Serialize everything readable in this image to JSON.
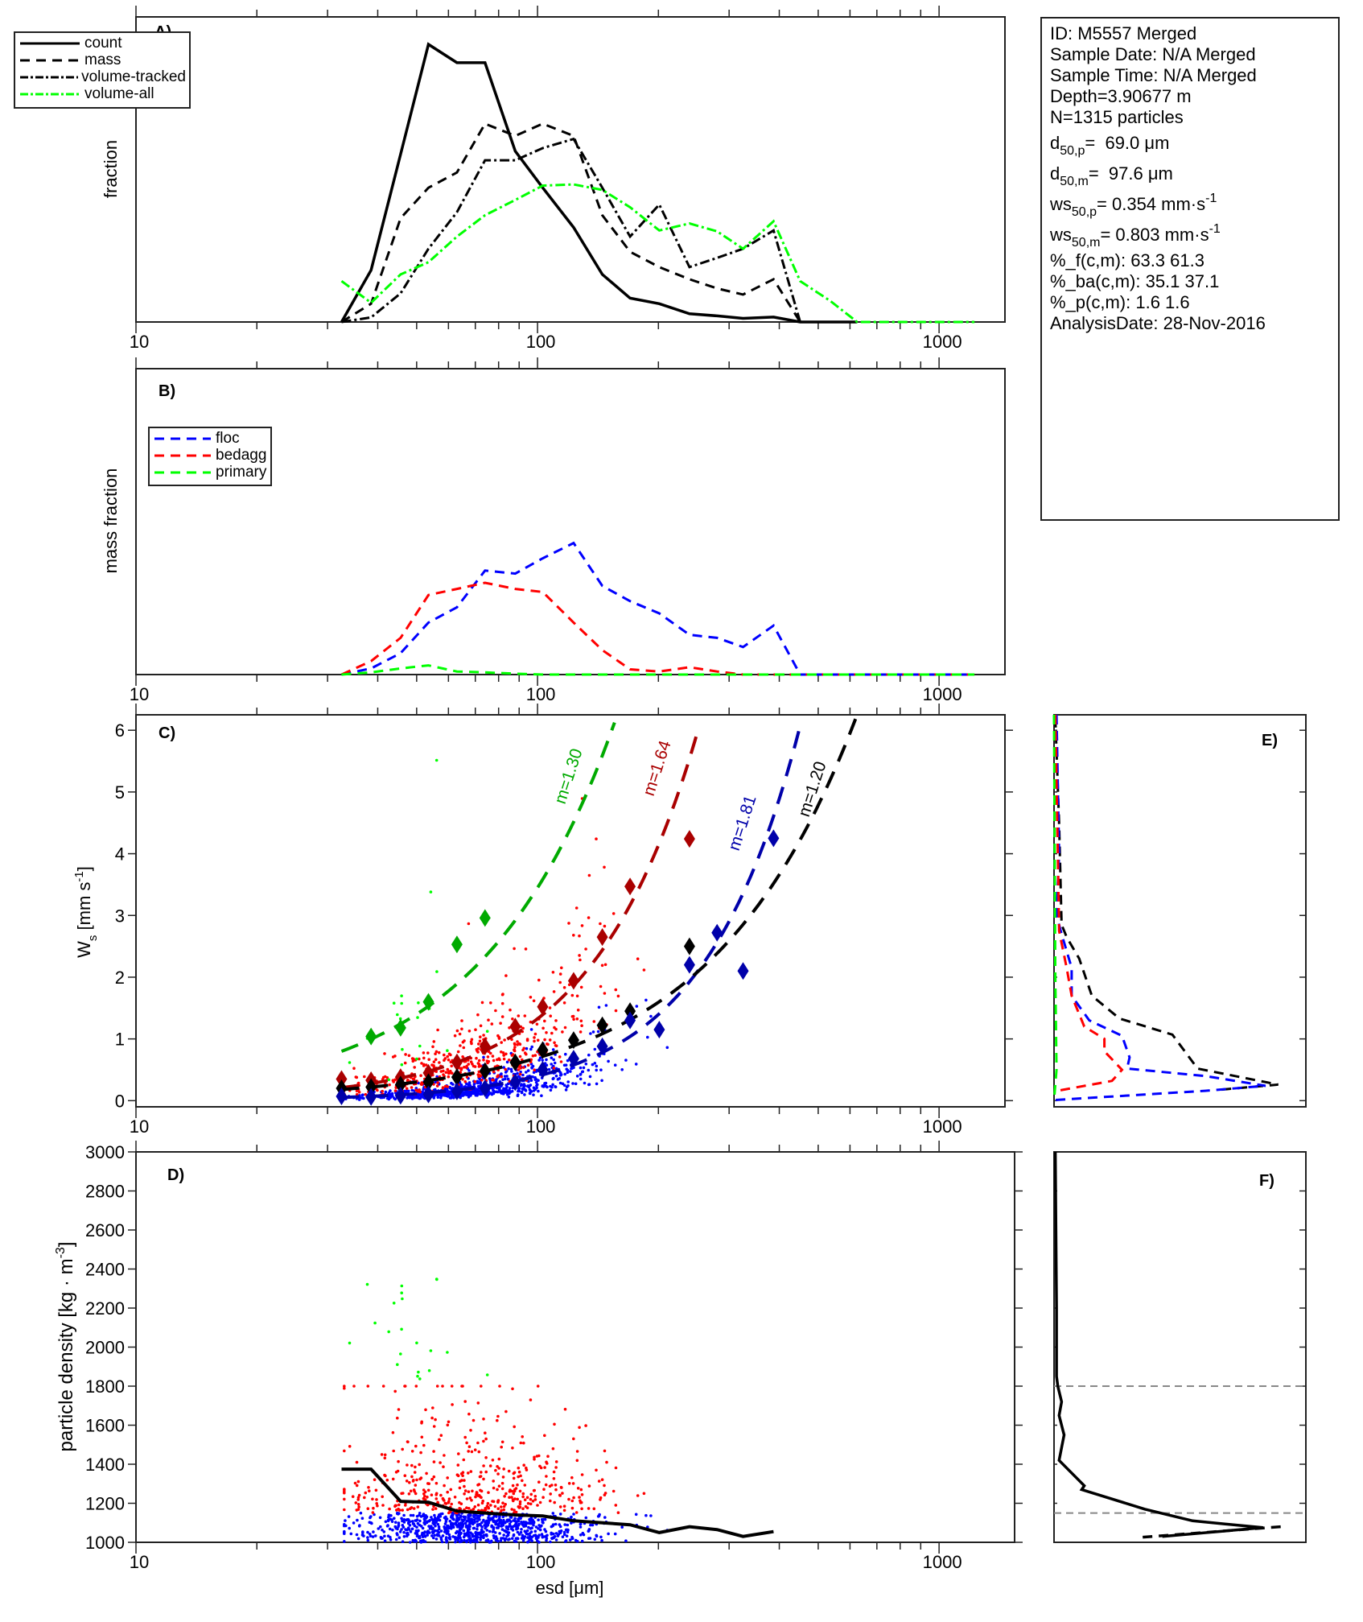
{
  "info_box": {
    "id": "ID: M5557 Merged",
    "sample_date": "Sample Date: N/A Merged",
    "sample_time": "Sample Time: N/A Merged",
    "depth": "Depth=3.90677 m",
    "n": "N=1315 particles",
    "d50p": {
      "main": "d",
      "sub": "50,p",
      "rest": "=  69.0 μm"
    },
    "d50m": {
      "main": "d",
      "sub": "50,m",
      "rest": "=  97.6 μm"
    },
    "ws50p": {
      "main": "ws",
      "sub": "50,p",
      "rest": "= 0.354 mm·s",
      "sup": "-1"
    },
    "ws50m": {
      "main": "ws",
      "sub": "50,m",
      "rest": "= 0.803 mm·s",
      "sup": "-1"
    },
    "pct_f": "%_f(c,m): 63.3 61.3",
    "pct_ba": "%_ba(c,m): 35.1 37.1",
    "pct_p": "%_p(c,m): 1.6 1.6",
    "analysis_date": "AnalysisDate: 28-Nov-2016"
  },
  "colors": {
    "floc": "#0000ff",
    "bedagg": "#ff0000",
    "primary": "#00ff00",
    "fit_green": "#00aa00",
    "fit_red": "#aa0000",
    "fit_blue": "#0000aa",
    "black": "#000000",
    "grey": "#888888"
  },
  "x_tick_labels": [
    "10",
    "100",
    "1000"
  ],
  "chart_data": [
    {
      "panel": "A)",
      "type": "line",
      "xscale": "log",
      "xlim": [
        10,
        1459
      ],
      "ylim": [
        0,
        1
      ],
      "ylabel": "fraction",
      "yticks": "none",
      "legend": "top-left",
      "x": [
        32.5,
        38.5,
        45.6,
        53.5,
        63,
        74,
        88,
        103,
        123,
        145,
        170,
        201,
        239,
        280,
        325,
        387,
        451,
        537,
        625,
        740,
        870,
        1030,
        1225
      ],
      "series": [
        {
          "name": "count",
          "style": "solid",
          "color": "#000000",
          "values": [
            0,
            0.17,
            0.55,
            0.91,
            0.85,
            0.85,
            0.56,
            0.44,
            0.31,
            0.156,
            0.078,
            0.06,
            0.027,
            0.02,
            0.012,
            0.016,
            0,
            0,
            0,
            null,
            null,
            null,
            null
          ]
        },
        {
          "name": "mass",
          "style": "dashed",
          "color": "#000000",
          "values": [
            0,
            0.06,
            0.34,
            0.44,
            0.49,
            0.65,
            0.61,
            0.65,
            0.61,
            0.35,
            0.23,
            0.18,
            0.14,
            0.11,
            0.09,
            0.14,
            0,
            null,
            null,
            null,
            null,
            null,
            null
          ]
        },
        {
          "name": "volume-tracked",
          "style": "dashdot",
          "color": "#000000",
          "values": [
            0,
            0.015,
            0.094,
            0.24,
            0.36,
            0.53,
            0.53,
            0.57,
            0.6,
            0.44,
            0.28,
            0.385,
            0.18,
            0.21,
            0.24,
            0.3,
            0,
            null,
            null,
            null,
            null,
            null,
            null
          ]
        },
        {
          "name": "volume-all",
          "style": "dashdot",
          "color": "#00ff00",
          "values": [
            0.134,
            0.063,
            0.156,
            0.196,
            0.28,
            0.35,
            0.4,
            0.447,
            0.451,
            0.433,
            0.376,
            0.3,
            0.323,
            0.297,
            0.24,
            0.33,
            0.134,
            0.068,
            0,
            0,
            0,
            0,
            0
          ]
        }
      ]
    },
    {
      "panel": "B)",
      "type": "line",
      "xscale": "log",
      "xlim": [
        10,
        1459
      ],
      "ylim": [
        0,
        1
      ],
      "ylabel": "mass fraction",
      "yticks": "none",
      "legend": "top-left",
      "x": [
        32.5,
        38.5,
        45.6,
        53.5,
        63,
        74,
        88,
        103,
        123,
        145,
        170,
        201,
        239,
        280,
        325,
        387,
        451,
        537,
        625,
        740,
        870,
        1030,
        1225
      ],
      "series": [
        {
          "name": "floc",
          "style": "dashed",
          "color": "#0000ff",
          "values": [
            0,
            0.02,
            0.07,
            0.17,
            0.22,
            0.34,
            0.33,
            0.38,
            0.43,
            0.29,
            0.24,
            0.2,
            0.13,
            0.12,
            0.09,
            0.16,
            0,
            0,
            0,
            0,
            0,
            0,
            0
          ]
        },
        {
          "name": "bedagg",
          "style": "dashed",
          "color": "#ff0000",
          "values": [
            0,
            0.044,
            0.12,
            0.26,
            0.28,
            0.3,
            0.28,
            0.27,
            0.17,
            0.08,
            0.017,
            0.01,
            0.024,
            0.01,
            0,
            0,
            0,
            0,
            0,
            0,
            0,
            0,
            0
          ]
        },
        {
          "name": "primary",
          "style": "dashed",
          "color": "#00ff00",
          "values": [
            0,
            0.007,
            0.02,
            0.03,
            0.01,
            0.007,
            0.003,
            0,
            0,
            0,
            0,
            0,
            0,
            0,
            0,
            0,
            0,
            0,
            0,
            0,
            0,
            0,
            0
          ]
        }
      ]
    },
    {
      "panel": "C)",
      "type": "scatter",
      "xscale": "log",
      "xlim": [
        10,
        1459
      ],
      "ylim": [
        -0.1,
        6.25
      ],
      "ylabel": {
        "main": "W",
        "sub": "s",
        "rest": " [mm s",
        "sup": "-1",
        "end": "]"
      },
      "yticks": [
        "0",
        "1",
        "2",
        "3",
        "4",
        "5",
        "6"
      ],
      "binned_means": [
        {
          "class": "primary",
          "color": "#00aa00",
          "x": [
            38.5,
            45.6,
            53.5,
            63,
            74
          ],
          "y": [
            1.04,
            1.18,
            1.6,
            2.53,
            2.96
          ]
        },
        {
          "class": "bedagg",
          "color": "#aa0000",
          "x": [
            32.5,
            38.5,
            45.6,
            53.5,
            63,
            74,
            88,
            103,
            123,
            145,
            170,
            239
          ],
          "y": [
            0.35,
            0.33,
            0.38,
            0.45,
            0.62,
            0.88,
            1.2,
            1.52,
            1.94,
            2.65,
            3.47,
            4.24
          ]
        },
        {
          "class": "all",
          "color": "#000000",
          "x": [
            32.5,
            38.5,
            45.6,
            53.5,
            63,
            74,
            88,
            103,
            123,
            145,
            170,
            239
          ],
          "y": [
            0.2,
            0.22,
            0.26,
            0.3,
            0.38,
            0.48,
            0.62,
            0.82,
            0.98,
            1.22,
            1.45,
            2.5
          ]
        },
        {
          "class": "floc",
          "color": "#0000aa",
          "x": [
            32.5,
            38.5,
            45.6,
            53.5,
            63,
            74,
            88,
            103,
            123,
            145,
            170,
            201,
            239,
            280,
            325,
            387
          ],
          "y": [
            0.07,
            0.06,
            0.08,
            0.1,
            0.15,
            0.2,
            0.3,
            0.5,
            0.68,
            0.88,
            1.3,
            1.15,
            2.2,
            2.72,
            2.1,
            4.25
          ]
        }
      ],
      "fits": [
        {
          "label": "m=1.30",
          "m": 1.3,
          "color": "#00aa00",
          "x0": 32.5,
          "y0": 0.8
        },
        {
          "label": "m=1.64",
          "m": 1.64,
          "color": "#aa0000",
          "x0": 32.5,
          "y0": 0.21
        },
        {
          "label": "m=1.81",
          "m": 1.81,
          "color": "#0000aa",
          "x0": 32.5,
          "y0": 0.052
        },
        {
          "label": "m=1.20",
          "m": 1.2,
          "color": "#000000",
          "x0": 32.5,
          "y0": 0.18
        }
      ]
    },
    {
      "panel": "D)",
      "type": "scatter",
      "xscale": "log",
      "xlim": [
        10,
        1542
      ],
      "ylim": [
        1000,
        3000
      ],
      "xlabel": "esd [μm]",
      "ylabel": {
        "main": "particle density [kg · m",
        "sup": "-3",
        "end": "]"
      },
      "yticks": [
        "1000",
        "1200",
        "1400",
        "1600",
        "1800",
        "2000",
        "2200",
        "2400",
        "2600",
        "2800",
        "3000"
      ],
      "mean_line": {
        "x": [
          32.5,
          38.5,
          45.6,
          53.5,
          63,
          74,
          88,
          103,
          123,
          145,
          170,
          201,
          239,
          280,
          325,
          387
        ],
        "y": [
          1375,
          1375,
          1210,
          1205,
          1160,
          1150,
          1140,
          1135,
          1110,
          1100,
          1090,
          1050,
          1080,
          1065,
          1030,
          1055
        ]
      }
    },
    {
      "panel": "E)",
      "type": "line",
      "ylim": [
        -0.1,
        6.25
      ],
      "xlim": [
        0,
        1
      ],
      "series": [
        {
          "class": "all",
          "color": "#000000",
          "points": [
            [
              0.005,
              6.2
            ],
            [
              0.02,
              4.5
            ],
            [
              0.03,
              2.85
            ],
            [
              0.05,
              2.65
            ],
            [
              0.1,
              2.3
            ],
            [
              0.15,
              1.7
            ],
            [
              0.26,
              1.33
            ],
            [
              0.47,
              1.07
            ],
            [
              0.57,
              0.52
            ],
            [
              0.89,
              0.26
            ],
            [
              0.64,
              0.17
            ]
          ]
        },
        {
          "class": "floc",
          "color": "#0000ff",
          "points": [
            [
              0.01,
              6.25
            ],
            [
              0.02,
              4.0
            ],
            [
              0.01,
              3.0
            ],
            [
              0.03,
              2.7
            ],
            [
              0.07,
              2.15
            ],
            [
              0.07,
              1.7
            ],
            [
              0.14,
              1.3
            ],
            [
              0.27,
              1.05
            ],
            [
              0.3,
              0.7
            ],
            [
              0.29,
              0.52
            ],
            [
              0.6,
              0.4
            ],
            [
              0.84,
              0.24
            ],
            [
              0.6,
              0.16
            ],
            [
              0.0,
              0.01
            ]
          ]
        },
        {
          "class": "bedagg",
          "color": "#ff0000",
          "points": [
            [
              0.005,
              6.25
            ],
            [
              0.015,
              4
            ],
            [
              0.02,
              2.75
            ],
            [
              0.05,
              2.15
            ],
            [
              0.07,
              1.7
            ],
            [
              0.12,
              1.2
            ],
            [
              0.2,
              1.0
            ],
            [
              0.2,
              0.8
            ],
            [
              0.27,
              0.5
            ],
            [
              0.23,
              0.32
            ],
            [
              0.0,
              0.15
            ]
          ]
        },
        {
          "class": "primary",
          "color": "#00ff00",
          "points": [
            [
              0.0,
              6.25
            ],
            [
              0.005,
              2.0
            ],
            [
              0.01,
              0.5
            ],
            [
              0.0,
              0.0
            ]
          ]
        }
      ]
    },
    {
      "panel": "F)",
      "type": "line",
      "ylim": [
        1000,
        3000
      ],
      "xlim": [
        0,
        1
      ],
      "reference_lines": [
        1800,
        1150
      ],
      "series": [
        {
          "style": "solid",
          "color": "#000000",
          "points": [
            [
              0.005,
              3000
            ],
            [
              0.01,
              2200
            ],
            [
              0.01,
              1850
            ],
            [
              0.015,
              1800
            ],
            [
              0.03,
              1720
            ],
            [
              0.02,
              1650
            ],
            [
              0.04,
              1550
            ],
            [
              0.02,
              1420
            ],
            [
              0.12,
              1290
            ],
            [
              0.11,
              1270
            ],
            [
              0.36,
              1170
            ],
            [
              0.55,
              1110
            ],
            [
              0.83,
              1075
            ],
            [
              0.43,
              1030
            ]
          ]
        },
        {
          "style": "dashed",
          "color": "#000000",
          "points": [
            [
              0.9,
              1080
            ],
            [
              0.34,
              1025
            ]
          ]
        }
      ]
    }
  ]
}
